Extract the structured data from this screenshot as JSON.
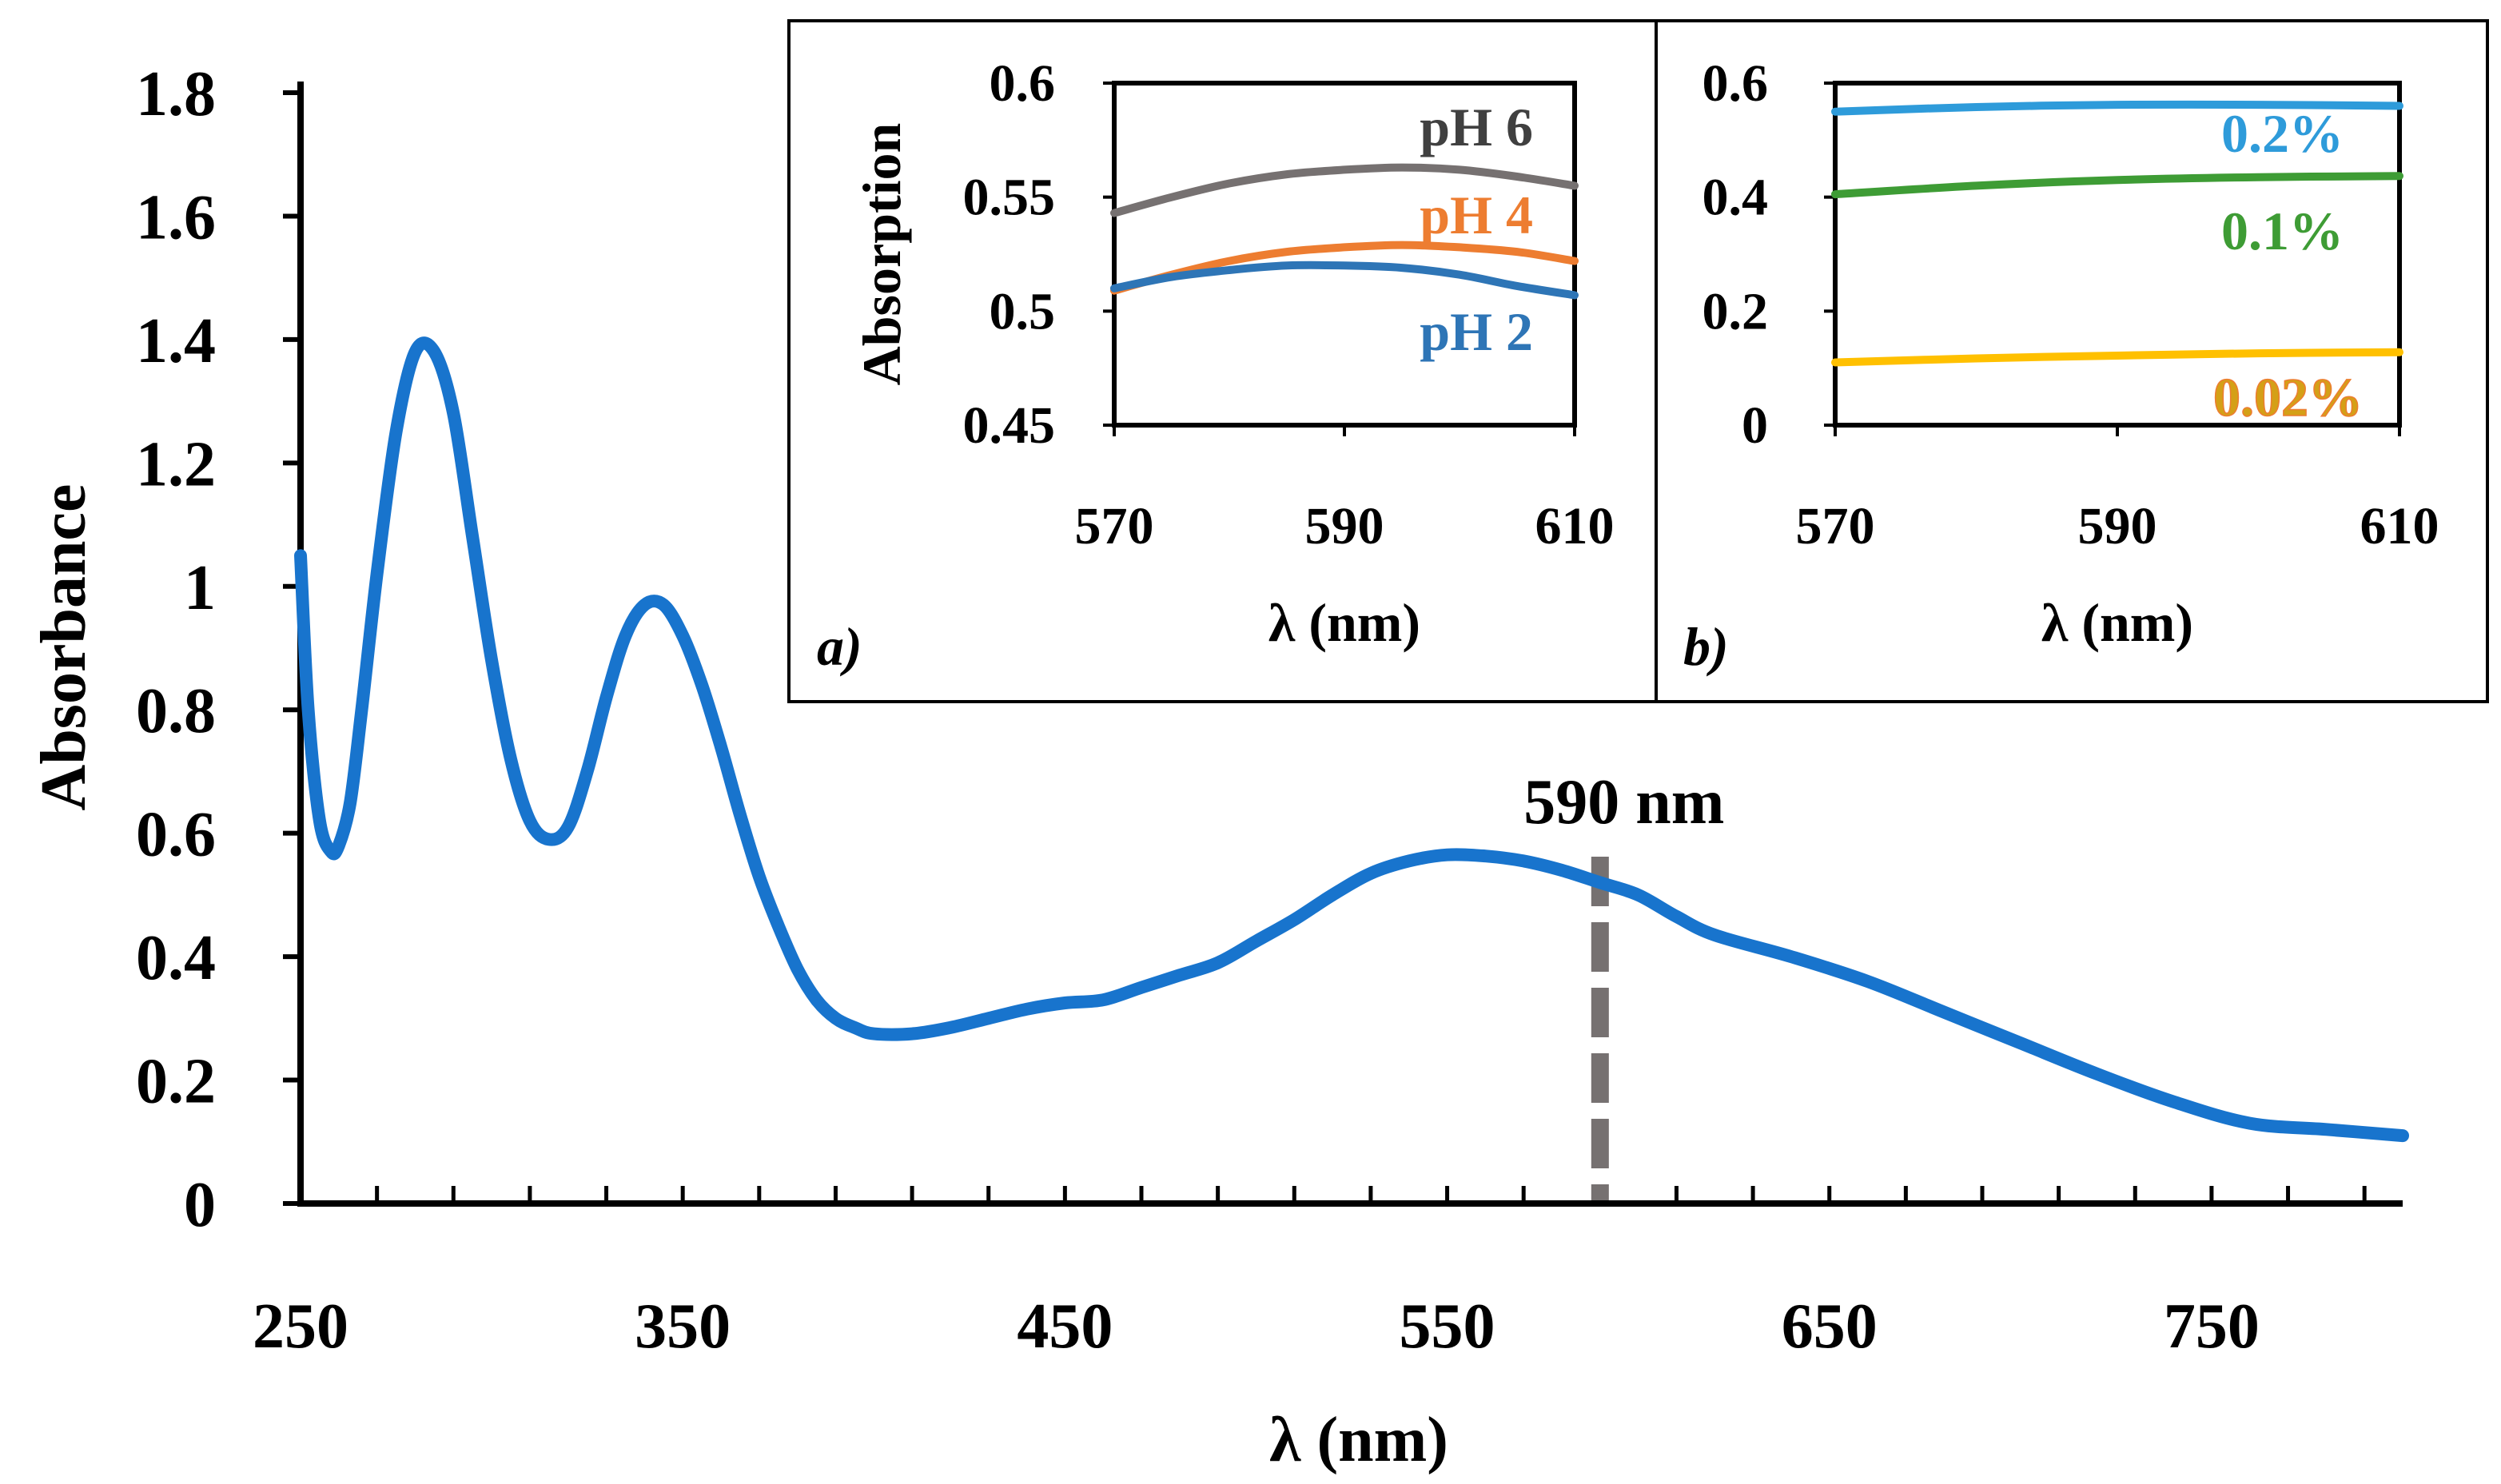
{
  "chart_data": [
    {
      "type": "line",
      "panel": "main",
      "title": "",
      "xlabel": "λ (nm)",
      "ylabel": "Absorbance",
      "xlim": [
        250,
        800
      ],
      "ylim": [
        0,
        1.8
      ],
      "x_tick_labels": [
        "250",
        "350",
        "450",
        "550",
        "650",
        "750"
      ],
      "y_tick_labels": [
        "0",
        "0.2",
        "0.4",
        "0.6",
        "0.8",
        "1",
        "1.2",
        "1.4",
        "1.6",
        "1.8"
      ],
      "x_minor_step": 20,
      "annotation": {
        "label": "590 nm",
        "x": 590
      },
      "series": [
        {
          "name": "absorbance",
          "color": "#1874CD",
          "x": [
            250,
            252,
            255,
            258,
            260,
            263,
            266,
            270,
            275,
            280,
            285,
            290,
            295,
            300,
            305,
            310,
            315,
            320,
            325,
            330,
            335,
            340,
            345,
            350,
            355,
            360,
            365,
            370,
            375,
            380,
            385,
            390,
            395,
            400,
            410,
            420,
            430,
            440,
            450,
            460,
            470,
            480,
            490,
            500,
            510,
            520,
            530,
            540,
            550,
            560,
            570,
            580,
            590,
            600,
            610,
            620,
            640,
            660,
            680,
            700,
            720,
            740,
            760,
            780,
            800
          ],
          "y": [
            1.05,
            0.8,
            0.62,
            0.57,
            0.58,
            0.65,
            0.8,
            1.02,
            1.25,
            1.38,
            1.38,
            1.28,
            1.08,
            0.88,
            0.72,
            0.62,
            0.59,
            0.61,
            0.7,
            0.82,
            0.92,
            0.97,
            0.97,
            0.92,
            0.84,
            0.74,
            0.63,
            0.53,
            0.45,
            0.38,
            0.33,
            0.3,
            0.285,
            0.275,
            0.275,
            0.285,
            0.3,
            0.315,
            0.325,
            0.33,
            0.35,
            0.37,
            0.39,
            0.425,
            0.46,
            0.5,
            0.535,
            0.555,
            0.565,
            0.563,
            0.555,
            0.54,
            0.52,
            0.5,
            0.465,
            0.435,
            0.4,
            0.36,
            0.31,
            0.26,
            0.21,
            0.165,
            0.13,
            0.12,
            0.11
          ]
        }
      ]
    },
    {
      "type": "line",
      "panel": "inset-a",
      "panel_label": "a)",
      "xlabel": "λ (nm)",
      "ylabel": "Absorption",
      "xlim": [
        570,
        610
      ],
      "ylim": [
        0.45,
        0.6
      ],
      "x_tick_labels": [
        "570",
        "590",
        "610"
      ],
      "y_tick_labels": [
        "0.45",
        "0.5",
        "0.55",
        "0.6"
      ],
      "series": [
        {
          "name": "pH 6",
          "color": "#767171",
          "x": [
            570,
            575,
            580,
            585,
            590,
            595,
            600,
            605,
            610
          ],
          "y": [
            0.543,
            0.55,
            0.556,
            0.56,
            0.562,
            0.563,
            0.562,
            0.559,
            0.555
          ]
        },
        {
          "name": "pH 4",
          "color": "#ED7D31",
          "x": [
            570,
            575,
            580,
            585,
            590,
            595,
            600,
            605,
            610
          ],
          "y": [
            0.509,
            0.516,
            0.522,
            0.526,
            0.528,
            0.529,
            0.528,
            0.526,
            0.522
          ]
        },
        {
          "name": "pH 2",
          "color": "#2E75B6",
          "x": [
            570,
            575,
            580,
            585,
            590,
            595,
            600,
            605,
            610
          ],
          "y": [
            0.51,
            0.515,
            0.518,
            0.52,
            0.52,
            0.519,
            0.516,
            0.511,
            0.507
          ]
        }
      ],
      "legend": [
        {
          "label": "pH 6",
          "color": "#404040"
        },
        {
          "label": "pH 4",
          "color": "#ED7D31"
        },
        {
          "label": "pH 2",
          "color": "#2E75B6"
        }
      ]
    },
    {
      "type": "line",
      "panel": "inset-b",
      "panel_label": "b)",
      "xlabel": "λ (nm)",
      "ylabel": "",
      "xlim": [
        570,
        610
      ],
      "ylim": [
        0,
        0.6
      ],
      "x_tick_labels": [
        "570",
        "590",
        "610"
      ],
      "y_tick_labels": [
        "0",
        "0.2",
        "0.4",
        "0.6"
      ],
      "series": [
        {
          "name": "0.2%",
          "color": "#2E9BDA",
          "x": [
            570,
            580,
            590,
            600,
            610
          ],
          "y": [
            0.55,
            0.558,
            0.562,
            0.562,
            0.56
          ]
        },
        {
          "name": "0.1%",
          "color": "#3E9C35",
          "x": [
            570,
            580,
            590,
            600,
            610
          ],
          "y": [
            0.405,
            0.42,
            0.43,
            0.435,
            0.437
          ]
        },
        {
          "name": "0.02%",
          "color": "#FFC000",
          "x": [
            570,
            580,
            590,
            600,
            610
          ],
          "y": [
            0.11,
            0.117,
            0.122,
            0.126,
            0.128
          ]
        }
      ],
      "legend": [
        {
          "label": "0.2%",
          "color": "#2E9BDA"
        },
        {
          "label": "0.1%",
          "color": "#3E9C35"
        },
        {
          "label": "0.02%",
          "color": "#D4A017",
          "outline": "#ED7D31"
        }
      ]
    }
  ]
}
